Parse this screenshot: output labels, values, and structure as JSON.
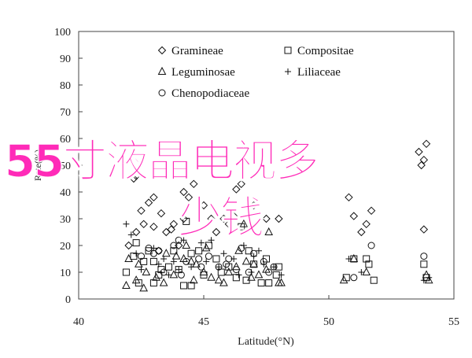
{
  "chart_data": {
    "type": "scatter",
    "title": "",
    "xlabel": "Latitude(°N)",
    "ylabel": "Rate(%)",
    "xlim": [
      40,
      55
    ],
    "ylim": [
      0,
      100
    ],
    "xticks": [
      40,
      45,
      50,
      55
    ],
    "yticks": [
      0,
      10,
      20,
      30,
      40,
      50,
      60,
      70,
      80,
      90,
      100
    ],
    "grid": false,
    "legend_position": "top-left inside",
    "series": [
      {
        "name": "Gramineae",
        "marker": "diamond",
        "points": [
          [
            42.0,
            20
          ],
          [
            42.3,
            25
          ],
          [
            42.5,
            33
          ],
          [
            42.8,
            36
          ],
          [
            43.0,
            38
          ],
          [
            42.6,
            28
          ],
          [
            43.3,
            32
          ],
          [
            43.0,
            27
          ],
          [
            42.2,
            45
          ],
          [
            42.3,
            46
          ],
          [
            43.8,
            28
          ],
          [
            43.7,
            26
          ],
          [
            43.5,
            25
          ],
          [
            44.2,
            40
          ],
          [
            44.6,
            43
          ],
          [
            44.4,
            38
          ],
          [
            44.2,
            30
          ],
          [
            45.0,
            35
          ],
          [
            45.3,
            30
          ],
          [
            45.5,
            25
          ],
          [
            46.0,
            28
          ],
          [
            46.3,
            41
          ],
          [
            46.5,
            43
          ],
          [
            47.0,
            35
          ],
          [
            47.5,
            30
          ],
          [
            48.0,
            30
          ],
          [
            43.2,
            18
          ],
          [
            44.0,
            20
          ],
          [
            45.8,
            30
          ],
          [
            46.2,
            31
          ],
          [
            50.8,
            38
          ],
          [
            51.0,
            31
          ],
          [
            51.7,
            33
          ],
          [
            51.5,
            28
          ],
          [
            51.3,
            25
          ],
          [
            53.8,
            26
          ],
          [
            53.7,
            50
          ],
          [
            53.8,
            52
          ],
          [
            53.6,
            55
          ],
          [
            53.9,
            58
          ]
        ]
      },
      {
        "name": "Compositae",
        "marker": "square",
        "points": [
          [
            41.9,
            10
          ],
          [
            42.2,
            16
          ],
          [
            42.3,
            21
          ],
          [
            42.6,
            14
          ],
          [
            43.0,
            14
          ],
          [
            42.8,
            18
          ],
          [
            43.3,
            11
          ],
          [
            43.6,
            12
          ],
          [
            43.8,
            18
          ],
          [
            44.0,
            11
          ],
          [
            44.5,
            17
          ],
          [
            44.3,
            29
          ],
          [
            44.8,
            18
          ],
          [
            45.2,
            20
          ],
          [
            45.5,
            15
          ],
          [
            46.0,
            12
          ],
          [
            46.5,
            27
          ],
          [
            46.8,
            18
          ],
          [
            47.0,
            13
          ],
          [
            47.5,
            15
          ],
          [
            48.0,
            12
          ],
          [
            42.4,
            6
          ],
          [
            43.0,
            6
          ],
          [
            44.2,
            5
          ],
          [
            44.5,
            5
          ],
          [
            45.0,
            9
          ],
          [
            46.3,
            8
          ],
          [
            46.7,
            7
          ],
          [
            47.3,
            6
          ],
          [
            47.6,
            6
          ],
          [
            50.7,
            8
          ],
          [
            51.0,
            15
          ],
          [
            51.5,
            15
          ],
          [
            51.6,
            13
          ],
          [
            51.8,
            7
          ],
          [
            53.8,
            13
          ],
          [
            53.9,
            8
          ],
          [
            43.2,
            9
          ],
          [
            45.7,
            10
          ],
          [
            47.9,
            9
          ]
        ]
      },
      {
        "name": "Leguminosae",
        "marker": "triangle",
        "points": [
          [
            41.9,
            5
          ],
          [
            42.0,
            15
          ],
          [
            42.3,
            7
          ],
          [
            42.4,
            13
          ],
          [
            42.6,
            4
          ],
          [
            43.1,
            8
          ],
          [
            43.5,
            17
          ],
          [
            43.9,
            16
          ],
          [
            44.2,
            15
          ],
          [
            44.5,
            14
          ],
          [
            44.7,
            13
          ],
          [
            45.0,
            10
          ],
          [
            45.3,
            8
          ],
          [
            45.6,
            7
          ],
          [
            46.0,
            10
          ],
          [
            46.3,
            12
          ],
          [
            46.7,
            14
          ],
          [
            47.0,
            13
          ],
          [
            47.2,
            9
          ],
          [
            47.5,
            11
          ],
          [
            48.0,
            6
          ],
          [
            44.3,
            20
          ],
          [
            45.1,
            19
          ],
          [
            46.4,
            18
          ],
          [
            46.6,
            28
          ],
          [
            47.6,
            25
          ],
          [
            48.1,
            6
          ],
          [
            43.8,
            9
          ],
          [
            44.6,
            7
          ],
          [
            45.8,
            6
          ],
          [
            50.6,
            7
          ],
          [
            51.0,
            15
          ],
          [
            51.5,
            10
          ],
          [
            53.9,
            9
          ],
          [
            54.0,
            7
          ],
          [
            46.9,
            8
          ],
          [
            42.7,
            10
          ],
          [
            43.4,
            6
          ]
        ]
      },
      {
        "name": "Liliaceae",
        "marker": "plus",
        "points": [
          [
            41.9,
            28
          ],
          [
            42.1,
            24
          ],
          [
            42.3,
            17
          ],
          [
            43.0,
            19
          ],
          [
            43.4,
            15
          ],
          [
            43.8,
            14
          ],
          [
            44.2,
            22
          ],
          [
            44.9,
            21
          ],
          [
            45.3,
            22
          ],
          [
            45.8,
            17
          ],
          [
            46.2,
            15
          ],
          [
            46.6,
            20
          ],
          [
            47.0,
            16
          ],
          [
            47.4,
            13
          ],
          [
            47.8,
            12
          ],
          [
            43.6,
            9
          ],
          [
            44.5,
            12
          ],
          [
            45.6,
            12
          ],
          [
            46.9,
            10
          ],
          [
            48.1,
            9
          ],
          [
            42.5,
            11
          ],
          [
            43.2,
            13
          ],
          [
            44.0,
            11
          ],
          [
            45.1,
            14
          ],
          [
            46.4,
            9
          ],
          [
            47.2,
            18
          ],
          [
            50.8,
            15
          ],
          [
            51.3,
            10
          ],
          [
            54.0,
            8
          ],
          [
            53.8,
            7
          ]
        ]
      },
      {
        "name": "Chenopodiaceae",
        "marker": "circle",
        "points": [
          [
            42.5,
            16
          ],
          [
            43.0,
            17
          ],
          [
            43.2,
            18
          ],
          [
            43.8,
            20
          ],
          [
            44.0,
            22
          ],
          [
            44.3,
            14
          ],
          [
            44.8,
            15
          ],
          [
            45.2,
            16
          ],
          [
            45.6,
            12
          ],
          [
            46.0,
            15
          ],
          [
            46.5,
            19
          ],
          [
            47.0,
            17
          ],
          [
            47.4,
            14
          ],
          [
            47.8,
            12
          ],
          [
            43.4,
            10
          ],
          [
            44.1,
            9
          ],
          [
            44.9,
            12
          ],
          [
            45.9,
            13
          ],
          [
            46.3,
            11
          ],
          [
            46.8,
            10
          ],
          [
            47.6,
            10
          ],
          [
            42.8,
            19
          ],
          [
            51.0,
            8
          ],
          [
            51.7,
            20
          ],
          [
            53.8,
            16
          ]
        ]
      }
    ]
  },
  "watermark": {
    "line1": "55寸液晶电视多",
    "line2": "少钱"
  }
}
